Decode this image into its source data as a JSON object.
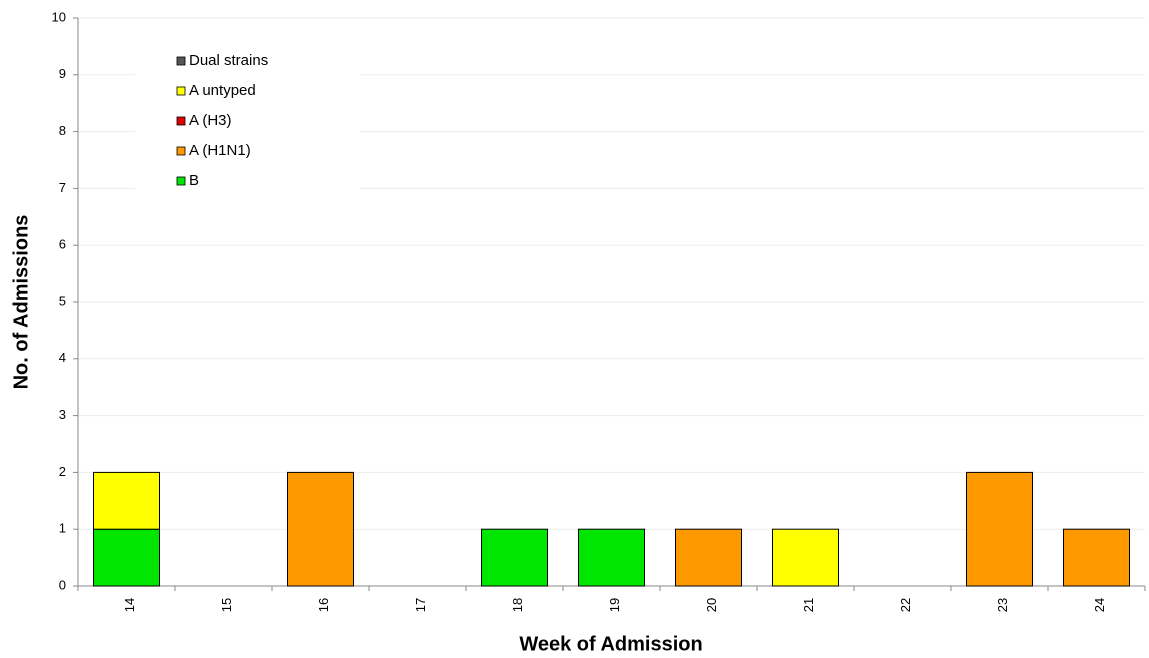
{
  "chart_data": {
    "type": "bar",
    "stacked": true,
    "x_label": "Week of Admission",
    "y_label": "No. of Admissions",
    "categories": [
      "14",
      "15",
      "16",
      "17",
      "18",
      "19",
      "20",
      "21",
      "22",
      "23",
      "24"
    ],
    "series": [
      {
        "name": "B",
        "color": "#00e600",
        "values": [
          1,
          0,
          0,
          0,
          1,
          1,
          0,
          0,
          0,
          0,
          0
        ]
      },
      {
        "name": "A (H1N1)",
        "color": "#ff9900",
        "values": [
          0,
          0,
          2,
          0,
          0,
          0,
          1,
          0,
          0,
          2,
          1
        ]
      },
      {
        "name": "A (H3)",
        "color": "#e00000",
        "values": [
          0,
          0,
          0,
          0,
          0,
          0,
          0,
          0,
          0,
          0,
          0
        ]
      },
      {
        "name": "A untyped",
        "color": "#ffff00",
        "values": [
          1,
          0,
          0,
          0,
          0,
          0,
          0,
          1,
          0,
          0,
          0
        ]
      },
      {
        "name": "Dual strains",
        "color": "#555555",
        "values": [
          0,
          0,
          0,
          0,
          0,
          0,
          0,
          0,
          0,
          0,
          0
        ]
      }
    ],
    "ylim": [
      0,
      10
    ],
    "yticks": [
      0,
      1,
      2,
      3,
      4,
      5,
      6,
      7,
      8,
      9,
      10
    ],
    "grid": true,
    "legend": "upper-left"
  }
}
